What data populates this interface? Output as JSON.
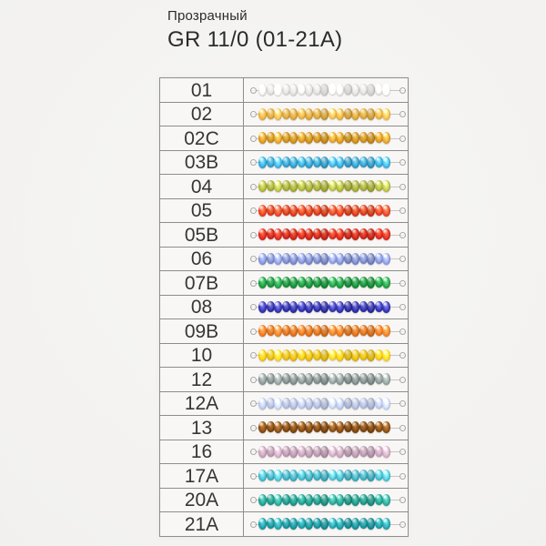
{
  "header": {
    "subtitle": "Прозрачный",
    "title": "GR 11/0 (01-21A)"
  },
  "table": {
    "beads_per_strand": 17,
    "rows": [
      {
        "code": "01",
        "color_name": "crystal-clear",
        "base": "#e6e7e5",
        "light": "#fbfbfa",
        "dark": "#b2b2ae"
      },
      {
        "code": "02",
        "color_name": "light-honey-amber",
        "base": "#e2aa3c",
        "light": "#f6da90",
        "dark": "#b07a12"
      },
      {
        "code": "02C",
        "color_name": "dark-amber",
        "base": "#d3921e",
        "light": "#efc75f",
        "dark": "#9c6206"
      },
      {
        "code": "03B",
        "color_name": "cyan-blue",
        "base": "#2fa5d5",
        "light": "#90d9ef",
        "dark": "#0f6f9e"
      },
      {
        "code": "04",
        "color_name": "olive-chartreuse",
        "base": "#a9b239",
        "light": "#dadd7e",
        "dark": "#6f7a0e"
      },
      {
        "code": "05",
        "color_name": "orange-red",
        "base": "#e23c1e",
        "light": "#f68e5c",
        "dark": "#a01404"
      },
      {
        "code": "05B",
        "color_name": "red",
        "base": "#d62619",
        "light": "#f06a48",
        "dark": "#940d06"
      },
      {
        "code": "06",
        "color_name": "light-periwinkle-blue",
        "base": "#7f8fd3",
        "light": "#c0c9ee",
        "dark": "#4c58a6"
      },
      {
        "code": "07B",
        "color_name": "emerald-green",
        "base": "#17963a",
        "light": "#60c57e",
        "dark": "#03601a"
      },
      {
        "code": "08",
        "color_name": "royal-blue-violet",
        "base": "#3030af",
        "light": "#7d7dd9",
        "dark": "#121275"
      },
      {
        "code": "09B",
        "color_name": "orange",
        "base": "#e4731c",
        "light": "#f6ab60",
        "dark": "#a84802"
      },
      {
        "code": "10",
        "color_name": "golden-yellow",
        "base": "#eec10a",
        "light": "#f9e370",
        "dark": "#b08802"
      },
      {
        "code": "12",
        "color_name": "smoky-gray",
        "base": "#879492",
        "light": "#bcc6c4",
        "dark": "#4f5b5a"
      },
      {
        "code": "12A",
        "color_name": "pale-lavender-blue",
        "base": "#b6c2e3",
        "light": "#e0e6f5",
        "dark": "#828ebc"
      },
      {
        "code": "13",
        "color_name": "topaz-brown",
        "base": "#85490f",
        "light": "#bb7e3c",
        "dark": "#492303"
      },
      {
        "code": "16",
        "color_name": "pale-mauve",
        "base": "#c09db3",
        "light": "#dfc6d6",
        "dark": "#8a677f"
      },
      {
        "code": "17A",
        "color_name": "light-aqua",
        "base": "#3eb5c7",
        "light": "#9be0ea",
        "dark": "#12798c"
      },
      {
        "code": "20A",
        "color_name": "teal-green",
        "base": "#1d9c8c",
        "light": "#67cabb",
        "dark": "#07655a"
      },
      {
        "code": "21A",
        "color_name": "deep-teal",
        "base": "#1898a0",
        "light": "#60c7cd",
        "dark": "#06646c"
      }
    ]
  }
}
